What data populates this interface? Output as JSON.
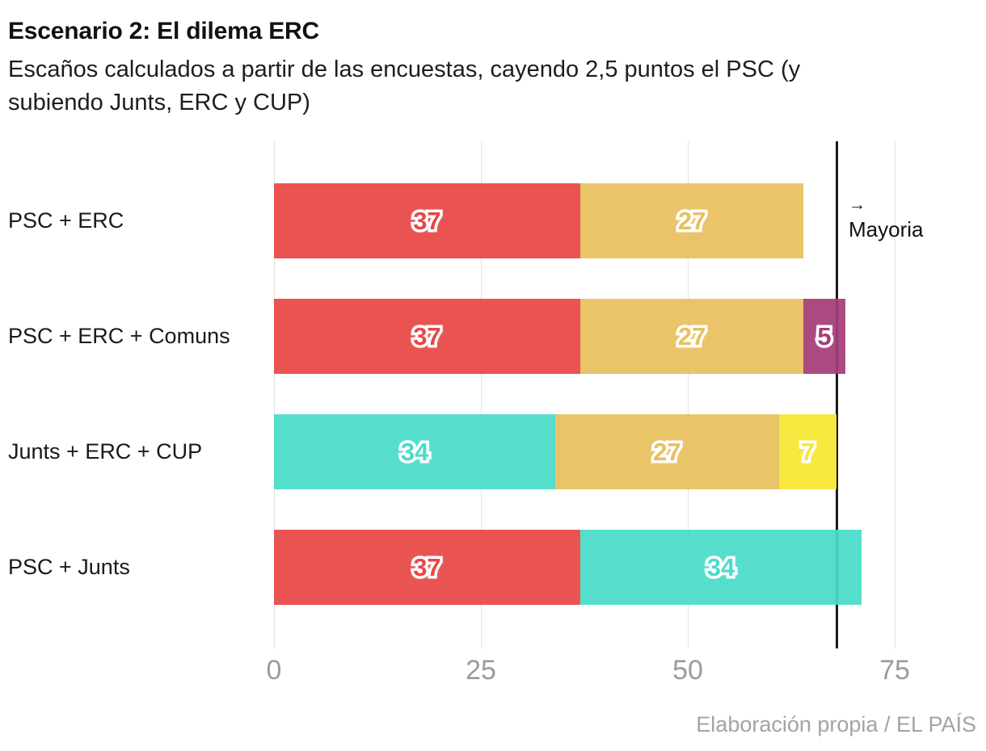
{
  "header": {
    "title": "Escenario 2: El dilema ERC",
    "subtitle": "Escaños calculados a partir de las encuestas, cayendo 2,5 puntos el PSC (y subiendo Junts, ERC y CUP)",
    "subtitle_line1": "Escaños calculados a partir de las encuestas, cayendo 2,5 puntos el PSC (y",
    "subtitle_line2": "subiendo Junts, ERC y CUP)"
  },
  "footer": {
    "credit": "Elaboración propia / EL PAÍS"
  },
  "chart_data": {
    "type": "bar",
    "orientation": "horizontal",
    "stacked": true,
    "title": "Escenario 2: El dilema ERC",
    "xlabel": "",
    "ylabel": "",
    "xticks": [
      0,
      25,
      50,
      75
    ],
    "xlim": [
      0,
      86
    ],
    "grid": true,
    "legend_position": "none",
    "majority_line": {
      "value": 68,
      "arrow": "→",
      "label": "Mayoria"
    },
    "categories": [
      "PSC + ERC",
      "PSC + ERC + Comuns",
      "Junts + ERC + CUP",
      "PSC + Junts"
    ],
    "rows": [
      {
        "label": "PSC + ERC",
        "total": 64,
        "segments": [
          {
            "party": "PSC",
            "seats": 37,
            "color": "#e74745"
          },
          {
            "party": "ERC",
            "seats": 27,
            "color": "#e7c05e"
          }
        ]
      },
      {
        "label": "PSC + ERC + Comuns",
        "total": 69,
        "segments": [
          {
            "party": "PSC",
            "seats": 37,
            "color": "#e74745"
          },
          {
            "party": "ERC",
            "seats": 27,
            "color": "#e7c05e"
          },
          {
            "party": "Comuns",
            "seats": 5,
            "color": "#a53c77"
          }
        ]
      },
      {
        "label": "Junts + ERC + CUP",
        "total": 68,
        "segments": [
          {
            "party": "Junts",
            "seats": 34,
            "color": "#49dcc9"
          },
          {
            "party": "ERC",
            "seats": 27,
            "color": "#e7c05e"
          },
          {
            "party": "CUP",
            "seats": 7,
            "color": "#f7e733"
          }
        ]
      },
      {
        "label": "PSC + Junts",
        "total": 71,
        "segments": [
          {
            "party": "PSC",
            "seats": 37,
            "color": "#e74745"
          },
          {
            "party": "Junts",
            "seats": 34,
            "color": "#49dcc9"
          }
        ]
      }
    ],
    "styles": {
      "grid_color": "#e4e4e4",
      "majority_line_color": "#1a1a1a",
      "tick_color": "#9b9b9b",
      "credit_color": "#a3a3a3"
    }
  }
}
